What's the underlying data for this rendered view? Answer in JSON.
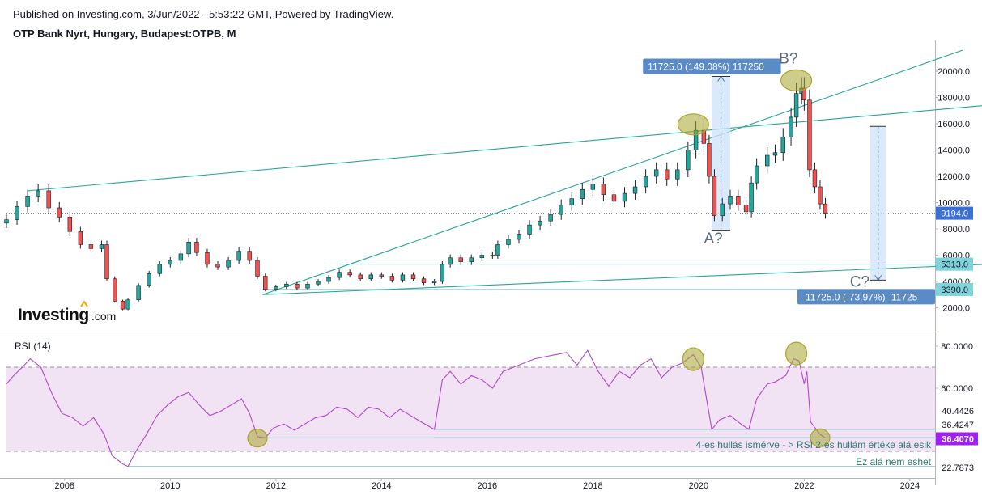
{
  "header": {
    "published": "Published on Investing.com, 3/Jun/2022 - 5:53:22 GMT, Powered by TradingView.",
    "symbol": "OTP Bank Nyrt, Hungary, Budapest:OTPB, M"
  },
  "logo": {
    "main": "Investing",
    "suffix": ".com"
  },
  "colors": {
    "up": "#26a69a",
    "down": "#ef5350",
    "trendline": "#26a69a",
    "measure_fill": "#cfe3f8",
    "measure_label": "#5b8bc6",
    "rsi_line": "#b048c8",
    "rsi_band": "#f2e3f4",
    "ellipse": "#a9a52b",
    "flag_last": "#3a6fd8",
    "flag_level": "#7fd4dc",
    "flag_rsi_last": "#a020f0"
  },
  "chart_data": [
    {
      "type": "candlestick",
      "title": "OTP Bank Nyrt, Hungary, Budapest:OTPB, M",
      "x_axis": {
        "ticks": [
          "2008",
          "2010",
          "2012",
          "2014",
          "2016",
          "2018",
          "2020",
          "2022",
          "2024"
        ],
        "range": [
          2006.9,
          2024.6
        ]
      },
      "y_axis": {
        "ticks": [
          "2000.0",
          "4000.0",
          "6000.0",
          "8000.0",
          "10000.0",
          "12000.0",
          "14000.0",
          "16000.0",
          "18000.0",
          "20000.0"
        ],
        "range": [
          600,
          21800
        ]
      },
      "last_price": {
        "label": "9194.0",
        "value": 9194
      },
      "series": [
        {
          "values": [
            [
              2006.9,
              8700
            ],
            [
              2007.1,
              9700
            ],
            [
              2007.3,
              10500
            ],
            [
              2007.5,
              10900
            ],
            [
              2007.7,
              9600
            ],
            [
              2007.9,
              8900
            ],
            [
              2008.1,
              7800
            ],
            [
              2008.3,
              6800
            ],
            [
              2008.5,
              6500
            ],
            [
              2008.7,
              6800
            ],
            [
              2008.8,
              4200
            ],
            [
              2008.95,
              2500
            ],
            [
              2009.1,
              1900
            ],
            [
              2009.2,
              2600
            ],
            [
              2009.4,
              3700
            ],
            [
              2009.6,
              4600
            ],
            [
              2009.8,
              5300
            ],
            [
              2010.0,
              5600
            ],
            [
              2010.2,
              6100
            ],
            [
              2010.35,
              7000
            ],
            [
              2010.5,
              6200
            ],
            [
              2010.7,
              5300
            ],
            [
              2010.9,
              5100
            ],
            [
              2011.1,
              5600
            ],
            [
              2011.3,
              6300
            ],
            [
              2011.5,
              5600
            ],
            [
              2011.65,
              4400
            ],
            [
              2011.8,
              3400
            ],
            [
              2012.0,
              3600
            ],
            [
              2012.2,
              3800
            ],
            [
              2012.4,
              3500
            ],
            [
              2012.6,
              3800
            ],
            [
              2012.8,
              4000
            ],
            [
              2013.0,
              4300
            ],
            [
              2013.2,
              4700
            ],
            [
              2013.4,
              4500
            ],
            [
              2013.6,
              4200
            ],
            [
              2013.8,
              4500
            ],
            [
              2014.0,
              4400
            ],
            [
              2014.2,
              4100
            ],
            [
              2014.4,
              4500
            ],
            [
              2014.6,
              4200
            ],
            [
              2014.8,
              3900
            ],
            [
              2015.0,
              4000
            ],
            [
              2015.15,
              5300
            ],
            [
              2015.3,
              5800
            ],
            [
              2015.5,
              5500
            ],
            [
              2015.7,
              5800
            ],
            [
              2015.9,
              6000
            ],
            [
              2016.1,
              6000
            ],
            [
              2016.2,
              6800
            ],
            [
              2016.4,
              7200
            ],
            [
              2016.6,
              7600
            ],
            [
              2016.8,
              8300
            ],
            [
              2017.0,
              8600
            ],
            [
              2017.2,
              9100
            ],
            [
              2017.4,
              9800
            ],
            [
              2017.6,
              10300
            ],
            [
              2017.8,
              11000
            ],
            [
              2018.0,
              11400
            ],
            [
              2018.2,
              10600
            ],
            [
              2018.4,
              10100
            ],
            [
              2018.6,
              10700
            ],
            [
              2018.8,
              11200
            ],
            [
              2019.0,
              12000
            ],
            [
              2019.2,
              12500
            ],
            [
              2019.4,
              11800
            ],
            [
              2019.6,
              12500
            ],
            [
              2019.8,
              14000
            ],
            [
              2019.95,
              15500
            ],
            [
              2020.1,
              14500
            ],
            [
              2020.2,
              12000
            ],
            [
              2020.3,
              9000
            ],
            [
              2020.45,
              9900
            ],
            [
              2020.6,
              10500
            ],
            [
              2020.75,
              9800
            ],
            [
              2020.9,
              9300
            ],
            [
              2021.0,
              11500
            ],
            [
              2021.1,
              12800
            ],
            [
              2021.3,
              13600
            ],
            [
              2021.45,
              13800
            ],
            [
              2021.6,
              15000
            ],
            [
              2021.75,
              16500
            ],
            [
              2021.85,
              18300
            ],
            [
              2021.95,
              18700
            ],
            [
              2022.0,
              17800
            ],
            [
              2022.1,
              12500
            ],
            [
              2022.2,
              11200
            ],
            [
              2022.3,
              9900
            ],
            [
              2022.4,
              9194
            ]
          ]
        }
      ],
      "trendlines": [
        {
          "from": [
            2007.3,
            10900
          ],
          "to": [
            2026.0,
            17600
          ]
        },
        {
          "from": [
            2011.75,
            3000
          ],
          "to": [
            2025.0,
            21600
          ]
        },
        {
          "from": [
            2011.75,
            3000
          ],
          "to": [
            2026.0,
            5400
          ]
        }
      ],
      "levels": [
        {
          "label": "5313.0",
          "value": 5313
        },
        {
          "label": "3390.0",
          "value": 3390
        }
      ],
      "measures": [
        {
          "label": "11725.0 (149.08%) 117250",
          "x": [
            2020.25,
            2020.6
          ],
          "y": [
            7900,
            19600
          ]
        },
        {
          "label": "-11725.0 (-73.97%) -11725",
          "x": [
            2023.25,
            2023.55
          ],
          "y": [
            15800,
            4100
          ]
        }
      ],
      "wave_labels": [
        {
          "text": "A?",
          "x": 2020.28,
          "y": 6900
        },
        {
          "text": "B?",
          "x": 2021.7,
          "y": 20600
        },
        {
          "text": "C?",
          "x": 2023.05,
          "y": 3600
        }
      ],
      "highlights": [
        {
          "x": 2019.9,
          "y": 15950
        },
        {
          "x": 2021.85,
          "y": 19300
        }
      ]
    },
    {
      "type": "line",
      "title": "RSI (14)",
      "y_axis": {
        "ticks": [
          "80.0000",
          "60.0000"
        ],
        "range": [
          19,
          86
        ]
      },
      "band": [
        30,
        70
      ],
      "levels": [
        {
          "label": "40.4426",
          "value": 40.4426
        },
        {
          "label": "36.4247",
          "value": 36.4247
        },
        {
          "label": "36.4070",
          "value": 36.407
        },
        {
          "label": "22.7873",
          "value": 22.7873
        }
      ],
      "annotations": [
        {
          "text": "4-es hullás ismérve - > RSI 2-es hullám értéke alá esik"
        },
        {
          "text": "Ez alá nem eshet"
        }
      ],
      "highlights": [
        {
          "x": 2011.65,
          "y": 36.3
        },
        {
          "x": 2019.9,
          "y": 73.8
        },
        {
          "x": 2021.85,
          "y": 76.5
        },
        {
          "x": 2022.3,
          "y": 36.4
        }
      ],
      "series": [
        {
          "values": [
            [
              2006.9,
              62
            ],
            [
              2007.0,
              65
            ],
            [
              2007.2,
              70
            ],
            [
              2007.35,
              74
            ],
            [
              2007.55,
              70
            ],
            [
              2007.75,
              58
            ],
            [
              2007.95,
              48
            ],
            [
              2008.15,
              46
            ],
            [
              2008.35,
              42
            ],
            [
              2008.55,
              46
            ],
            [
              2008.75,
              38
            ],
            [
              2008.9,
              28
            ],
            [
              2009.1,
              24
            ],
            [
              2009.2,
              22.8
            ],
            [
              2009.35,
              30
            ],
            [
              2009.55,
              38
            ],
            [
              2009.75,
              47
            ],
            [
              2009.95,
              52
            ],
            [
              2010.15,
              56
            ],
            [
              2010.35,
              58
            ],
            [
              2010.55,
              52
            ],
            [
              2010.75,
              47
            ],
            [
              2010.95,
              49
            ],
            [
              2011.15,
              52
            ],
            [
              2011.35,
              55
            ],
            [
              2011.5,
              48
            ],
            [
              2011.65,
              37
            ],
            [
              2011.8,
              36.4
            ],
            [
              2011.95,
              41
            ],
            [
              2012.15,
              43
            ],
            [
              2012.35,
              40
            ],
            [
              2012.55,
              43
            ],
            [
              2012.75,
              46
            ],
            [
              2012.95,
              47
            ],
            [
              2013.15,
              51
            ],
            [
              2013.35,
              50
            ],
            [
              2013.55,
              46
            ],
            [
              2013.75,
              51
            ],
            [
              2013.95,
              50
            ],
            [
              2014.15,
              46
            ],
            [
              2014.35,
              50
            ],
            [
              2014.55,
              47
            ],
            [
              2014.75,
              44
            ],
            [
              2015.0,
              40.4
            ],
            [
              2015.15,
              64
            ],
            [
              2015.3,
              68
            ],
            [
              2015.5,
              62
            ],
            [
              2015.7,
              66
            ],
            [
              2015.9,
              64
            ],
            [
              2016.1,
              60
            ],
            [
              2016.3,
              68
            ],
            [
              2016.5,
              70
            ],
            [
              2016.7,
              72
            ],
            [
              2016.9,
              74
            ],
            [
              2017.1,
              75
            ],
            [
              2017.3,
              76
            ],
            [
              2017.5,
              77
            ],
            [
              2017.7,
              71
            ],
            [
              2017.9,
              78
            ],
            [
              2018.1,
              68
            ],
            [
              2018.3,
              61
            ],
            [
              2018.5,
              68
            ],
            [
              2018.7,
              65
            ],
            [
              2018.9,
              71
            ],
            [
              2019.1,
              74
            ],
            [
              2019.3,
              65
            ],
            [
              2019.5,
              70
            ],
            [
              2019.7,
              72
            ],
            [
              2019.9,
              76
            ],
            [
              2020.05,
              70
            ],
            [
              2020.15,
              55
            ],
            [
              2020.25,
              40.4
            ],
            [
              2020.4,
              45
            ],
            [
              2020.6,
              47
            ],
            [
              2020.8,
              43
            ],
            [
              2020.95,
              40.4
            ],
            [
              2021.1,
              55
            ],
            [
              2021.3,
              62
            ],
            [
              2021.45,
              63
            ],
            [
              2021.65,
              66
            ],
            [
              2021.8,
              74
            ],
            [
              2021.9,
              73
            ],
            [
              2022.0,
              62
            ],
            [
              2022.05,
              68
            ],
            [
              2022.12,
              44
            ],
            [
              2022.3,
              38
            ],
            [
              2022.4,
              36.4
            ]
          ]
        }
      ]
    }
  ]
}
